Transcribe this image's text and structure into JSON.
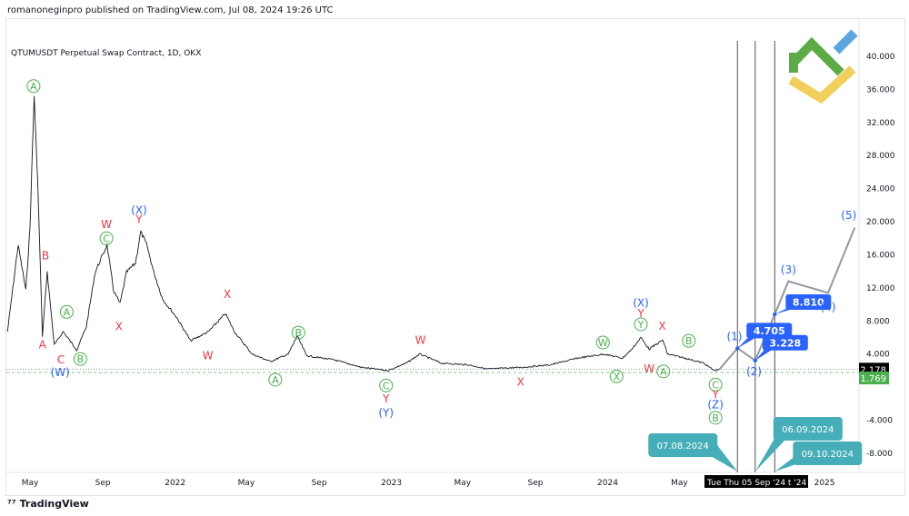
{
  "header": {
    "published": "romanoneginpro published on TradingView.com, Jul 08, 2024 19:26 UTC",
    "symbol": "QTUMUSDT Perpetual Swap Contract, 1D, OKX"
  },
  "footer": {
    "brand": "TradingView",
    "logo_icon": "tradingview-logo-icon"
  },
  "chart_data": {
    "type": "line",
    "title": "QTUMUSDT Perpetual Swap Contract, 1D, OKX",
    "ylim": [
      -10,
      42
    ],
    "yticks": [
      40,
      36,
      32,
      28,
      24,
      20,
      16,
      12,
      8,
      4,
      0,
      -4,
      -8
    ],
    "ytick_labels": [
      "40.000",
      "36.000",
      "32.000",
      "28.000",
      "24.000",
      "20.000",
      "16.000",
      "12.000",
      "8.000",
      "4.000",
      "0.000",
      "-4.000",
      "-8.000"
    ],
    "xticks": [
      {
        "date": "2021-05-01",
        "label": "May"
      },
      {
        "date": "2021-09-01",
        "label": "Sep"
      },
      {
        "date": "2022-01-01",
        "label": "2022"
      },
      {
        "date": "2022-05-01",
        "label": "May"
      },
      {
        "date": "2022-09-01",
        "label": "Sep"
      },
      {
        "date": "2023-01-01",
        "label": "2023"
      },
      {
        "date": "2023-05-01",
        "label": "May"
      },
      {
        "date": "2023-09-01",
        "label": "Sep"
      },
      {
        "date": "2024-01-01",
        "label": "2024"
      },
      {
        "date": "2024-05-01",
        "label": "May"
      },
      {
        "date": "2025-01-01",
        "label": "2025"
      }
    ],
    "crosshair_label": "Tue   Thu 05 Sep '24   t '24",
    "series": [
      {
        "values": [
          [
            "2021-03-24",
            6.7
          ],
          [
            "2021-04-11",
            17.2
          ],
          [
            "2021-04-24",
            11.7
          ],
          [
            "2021-05-01",
            19.3
          ],
          [
            "2021-05-08",
            35.3
          ],
          [
            "2021-05-14",
            24.8
          ],
          [
            "2021-05-22",
            6.2
          ],
          [
            "2021-05-30",
            13.9
          ],
          [
            "2021-06-11",
            5.1
          ],
          [
            "2021-06-26",
            6.7
          ],
          [
            "2021-07-19",
            4.5
          ],
          [
            "2021-08-04",
            7.3
          ],
          [
            "2021-08-19",
            13.9
          ],
          [
            "2021-09-08",
            17.2
          ],
          [
            "2021-09-19",
            11.7
          ],
          [
            "2021-09-30",
            10.1
          ],
          [
            "2021-10-11",
            13.9
          ],
          [
            "2021-10-26",
            15.0
          ],
          [
            "2021-11-04",
            18.8
          ],
          [
            "2021-11-14",
            17.2
          ],
          [
            "2021-11-26",
            13.9
          ],
          [
            "2021-12-11",
            10.6
          ],
          [
            "2022-01-04",
            8.4
          ],
          [
            "2022-01-27",
            5.6
          ],
          [
            "2022-02-26",
            6.7
          ],
          [
            "2022-03-27",
            8.9
          ],
          [
            "2022-04-11",
            6.7
          ],
          [
            "2022-05-11",
            4.0
          ],
          [
            "2022-06-11",
            3.1
          ],
          [
            "2022-07-11",
            4.0
          ],
          [
            "2022-07-26",
            6.2
          ],
          [
            "2022-08-11",
            3.8
          ],
          [
            "2022-09-26",
            3.3
          ],
          [
            "2022-11-11",
            2.4
          ],
          [
            "2022-12-26",
            2.0
          ],
          [
            "2023-01-26",
            2.9
          ],
          [
            "2023-02-18",
            4.0
          ],
          [
            "2023-03-26",
            2.9
          ],
          [
            "2023-05-11",
            2.7
          ],
          [
            "2023-06-11",
            2.2
          ],
          [
            "2023-08-11",
            2.4
          ],
          [
            "2023-09-26",
            2.7
          ],
          [
            "2023-11-11",
            3.5
          ],
          [
            "2023-12-26",
            4.0
          ],
          [
            "2024-01-26",
            3.5
          ],
          [
            "2024-02-11",
            4.6
          ],
          [
            "2024-02-26",
            6.0
          ],
          [
            "2024-03-11",
            4.6
          ],
          [
            "2024-04-03",
            5.7
          ],
          [
            "2024-04-11",
            4.0
          ],
          [
            "2024-05-11",
            3.5
          ],
          [
            "2024-06-11",
            2.9
          ],
          [
            "2024-06-29",
            2.0
          ],
          [
            "2024-07-08",
            2.178
          ]
        ]
      }
    ],
    "projection": [
      [
        "2024-07-08",
        2.178
      ],
      [
        "2024-08-07",
        4.705
      ],
      [
        "2024-09-06",
        3.228
      ],
      [
        "2024-10-09",
        8.81
      ],
      [
        "2024-11-01",
        12.8
      ],
      [
        "2025-01-07",
        11.4
      ],
      [
        "2025-02-21",
        19.3
      ]
    ],
    "price_labels": [
      {
        "date": "2024-08-07",
        "value": 4.705,
        "text": "4.705"
      },
      {
        "date": "2024-09-06",
        "value": 3.228,
        "text": "3.228"
      },
      {
        "date": "2024-10-09",
        "value": 8.81,
        "text": "8.810"
      }
    ],
    "current_price": {
      "value": 2.178,
      "text": "2.178"
    },
    "other_price": {
      "value": 1.769,
      "text": "1.769"
    },
    "vertical_markers": [
      {
        "date": "2024-08-07",
        "text": "07.08.2024"
      },
      {
        "date": "2024-09-06",
        "text": "06.09.2024"
      },
      {
        "date": "2024-10-09",
        "text": "09.10.2024"
      }
    ],
    "wave_labels": [
      {
        "t": "A",
        "s": "circle",
        "d": "2021-05-07",
        "v": 36.4
      },
      {
        "t": "B",
        "s": "red",
        "d": "2021-05-27",
        "v": 15.9
      },
      {
        "t": "A",
        "s": "red",
        "d": "2021-05-22",
        "v": 5.1
      },
      {
        "t": "C",
        "s": "red",
        "d": "2021-06-22",
        "v": 3.3
      },
      {
        "t": "(W)",
        "s": "blue",
        "d": "2021-06-21",
        "v": 1.8
      },
      {
        "t": "A",
        "s": "circle",
        "d": "2021-07-02",
        "v": 9.1
      },
      {
        "t": "B",
        "s": "circle",
        "d": "2021-07-25",
        "v": 3.4
      },
      {
        "t": "C",
        "s": "circle",
        "d": "2021-09-07",
        "v": 18.0
      },
      {
        "t": "W",
        "s": "red",
        "d": "2021-09-07",
        "v": 19.7
      },
      {
        "t": "(X)",
        "s": "blue",
        "d": "2021-11-01",
        "v": 21.4
      },
      {
        "t": "Y",
        "s": "red",
        "d": "2021-11-01",
        "v": 20.3
      },
      {
        "t": "X",
        "s": "red",
        "d": "2021-09-28",
        "v": 7.3
      },
      {
        "t": "X",
        "s": "red",
        "d": "2022-03-30",
        "v": 11.2
      },
      {
        "t": "W",
        "s": "red",
        "d": "2022-02-25",
        "v": 3.8
      },
      {
        "t": "B",
        "s": "circle",
        "d": "2022-07-28",
        "v": 6.6
      },
      {
        "t": "A",
        "s": "circle",
        "d": "2022-06-19",
        "v": 0.9
      },
      {
        "t": "W",
        "s": "red",
        "d": "2023-02-19",
        "v": 5.7
      },
      {
        "t": "C",
        "s": "circle",
        "d": "2022-12-23",
        "v": 0.2
      },
      {
        "t": "Y",
        "s": "red",
        "d": "2022-12-23",
        "v": -1.4
      },
      {
        "t": "(Y)",
        "s": "blue",
        "d": "2022-12-23",
        "v": -3.1
      },
      {
        "t": "X",
        "s": "red",
        "d": "2023-08-07",
        "v": 0.6
      },
      {
        "t": "W",
        "s": "circle",
        "d": "2023-12-24",
        "v": 5.4
      },
      {
        "t": "X",
        "s": "circle",
        "d": "2024-01-16",
        "v": 1.3
      },
      {
        "t": "(X)",
        "s": "blue",
        "d": "2024-02-26",
        "v": 10.2
      },
      {
        "t": "Y",
        "s": "red",
        "d": "2024-02-26",
        "v": 8.9
      },
      {
        "t": "Y",
        "s": "circle",
        "d": "2024-02-26",
        "v": 7.6
      },
      {
        "t": "X",
        "s": "red",
        "d": "2024-04-02",
        "v": 7.4
      },
      {
        "t": "W",
        "s": "red",
        "d": "2024-03-11",
        "v": 2.2
      },
      {
        "t": "A",
        "s": "circle",
        "d": "2024-04-04",
        "v": 1.9
      },
      {
        "t": "B",
        "s": "circle",
        "d": "2024-05-17",
        "v": 5.6
      },
      {
        "t": "C",
        "s": "circle",
        "d": "2024-07-01",
        "v": 0.3
      },
      {
        "t": "Y",
        "s": "red",
        "d": "2024-07-01",
        "v": -0.9
      },
      {
        "t": "(Z)",
        "s": "blue",
        "d": "2024-07-01",
        "v": -2.1
      },
      {
        "t": "B",
        "s": "circle",
        "d": "2024-07-01",
        "v": -3.7
      },
      {
        "t": "(1)",
        "s": "blue",
        "d": "2024-08-02",
        "v": 6.1
      },
      {
        "t": "(2)",
        "s": "blue",
        "d": "2024-09-04",
        "v": 1.9
      },
      {
        "t": "(3)",
        "s": "blue",
        "d": "2024-11-01",
        "v": 14.2
      },
      {
        "t": "(4)",
        "s": "blue",
        "d": "2025-01-07",
        "v": 9.7
      },
      {
        "t": "(5)",
        "s": "blue",
        "d": "2025-02-11",
        "v": 20.8
      }
    ],
    "colors": {
      "price": "#131722",
      "projection": "#9598a1",
      "label_box": "#2962ff",
      "marker_box": "#45aeb8",
      "green": "#4caf50",
      "red": "#f23645",
      "blue": "#2962ff",
      "current": "#000000",
      "other": "#4caf50"
    },
    "grid": false
  }
}
